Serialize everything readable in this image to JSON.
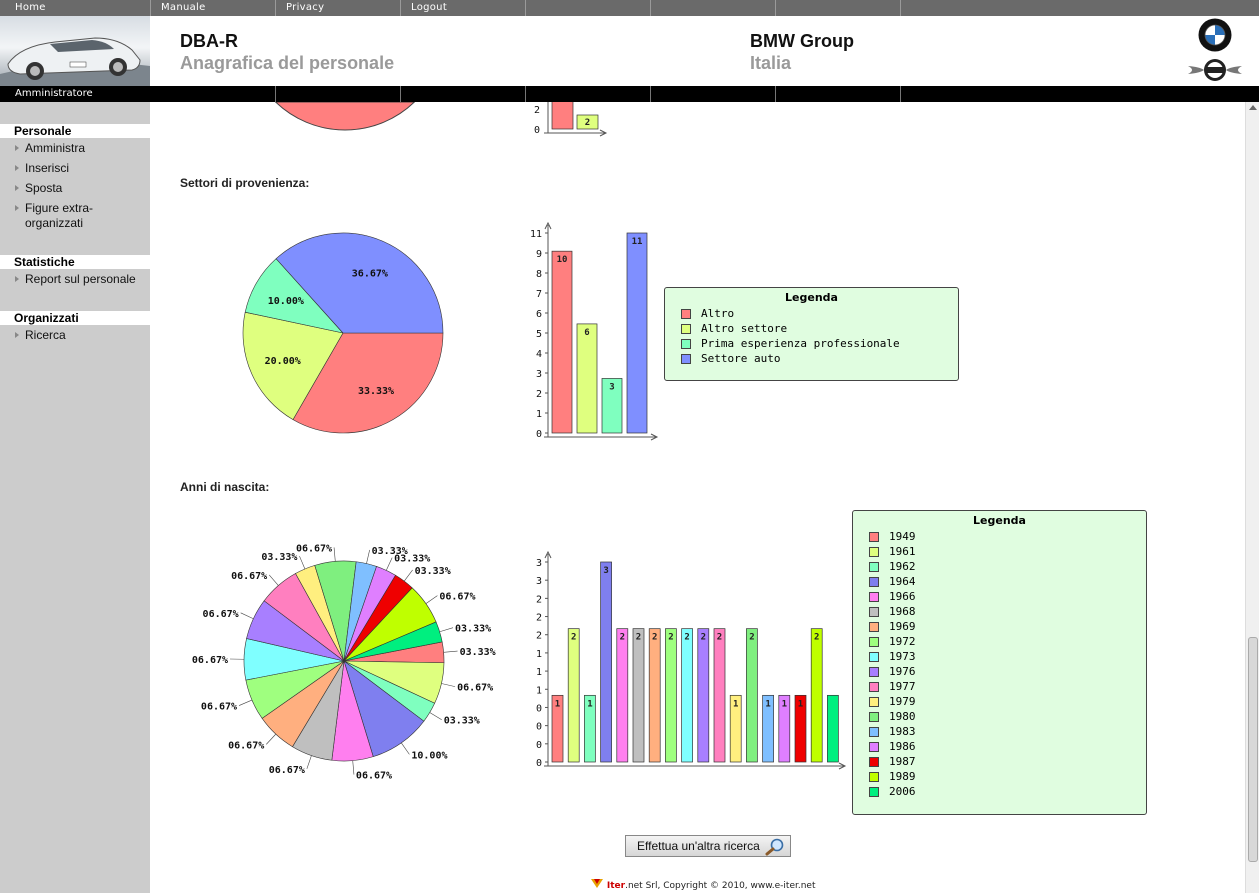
{
  "nav": {
    "items": [
      "Home",
      "Manuale",
      "Privacy",
      "Logout"
    ]
  },
  "header": {
    "app_title": "DBA-R",
    "app_subtitle": "Anagrafica del personale",
    "brand_title": "BMW Group",
    "brand_subtitle": "Italia",
    "role": "Amministratore",
    "logos": [
      "bmw-logo",
      "mini-logo"
    ]
  },
  "sidebar": {
    "sections": [
      {
        "title": "Personale",
        "items": [
          "Amministra",
          "Inserisci",
          "Sposta",
          "Figure extra-\norganizzati"
        ]
      },
      {
        "title": "Statistiche",
        "items": [
          "Report sul personale"
        ]
      },
      {
        "title": "Organizzati",
        "items": [
          "Ricerca"
        ]
      }
    ]
  },
  "colors": {
    "nav_bg": "#6a6a6a",
    "sidebar_bg": "#cccccc",
    "legend_bg": "#e0fde0"
  },
  "sections": {
    "settori_title": "Settori di provenienza:",
    "anni_title": "Anni di nascita:"
  },
  "chart_data": [
    {
      "type": "bar",
      "note": "partially scrolled-out chart at top",
      "visible_y_ticks": [
        "2",
        "0"
      ],
      "visible_bars": [
        {
          "value_label": "",
          "color": "#ff7f7f"
        },
        {
          "value_label": "2",
          "color": "#dfff7f"
        }
      ]
    },
    {
      "type": "pie",
      "title": "Settori di provenienza:",
      "categories": [
        "Altro",
        "Altro settore",
        "Prima esperienza professionale",
        "Settore auto"
      ],
      "percent_labels": [
        "33.33%",
        "20.00%",
        "10.00%",
        "36.67%"
      ],
      "values": [
        10,
        6,
        3,
        11
      ],
      "colors": [
        "#ff7f7f",
        "#dfff7f",
        "#7fffbf",
        "#7f8fff"
      ]
    },
    {
      "type": "bar",
      "title": "Settori di provenienza:",
      "categories": [
        "Altro",
        "Altro settore",
        "Prima esperienza professionale",
        "Settore auto"
      ],
      "values": [
        10,
        6,
        3,
        11
      ],
      "value_labels": [
        "10",
        "6",
        "3",
        "11"
      ],
      "y_ticks": [
        "0",
        "1",
        "2",
        "3",
        "4",
        "5",
        "6",
        "7",
        "8",
        "9",
        "11"
      ],
      "ylim": [
        0,
        11
      ],
      "colors": [
        "#ff7f7f",
        "#dfff7f",
        "#7fffbf",
        "#7f8fff"
      ],
      "legend": {
        "title": "Legenda",
        "entries": [
          "Altro",
          "Altro settore",
          "Prima esperienza professionale",
          "Settore auto"
        ],
        "placement": "right"
      }
    },
    {
      "type": "pie",
      "title": "Anni di nascita:",
      "categories": [
        "1949",
        "1961",
        "1962",
        "1964",
        "1966",
        "1968",
        "1969",
        "1972",
        "1973",
        "1976",
        "1977",
        "1979",
        "1980",
        "1983",
        "1986",
        "1987",
        "1989",
        "2006"
      ],
      "values": [
        1,
        2,
        1,
        3,
        2,
        2,
        2,
        2,
        2,
        2,
        2,
        1,
        2,
        1,
        1,
        1,
        2,
        1
      ],
      "percent_labels": [
        "03.33%",
        "06.67%",
        "03.33%",
        "10.00%",
        "06.67%",
        "06.67%",
        "06.67%",
        "06.67%",
        "06.67%",
        "06.67%",
        "06.67%",
        "03.33%",
        "06.67%",
        "03.33%",
        "03.33%",
        "03.33%",
        "06.67%",
        "03.33%"
      ],
      "colors": [
        "#ff7f7f",
        "#dfff7f",
        "#7fffbf",
        "#7f7fef",
        "#ff7fef",
        "#bfbfbf",
        "#ffaf7f",
        "#9fff7f",
        "#7fffff",
        "#a87fff",
        "#ff7fbf",
        "#ffef7f",
        "#7fef7f",
        "#7fbfff",
        "#df7fff",
        "#ef0000",
        "#bfff00",
        "#00ef7f"
      ]
    },
    {
      "type": "bar",
      "title": "Anni di nascita:",
      "categories": [
        "1949",
        "1961",
        "1962",
        "1964",
        "1966",
        "1968",
        "1969",
        "1972",
        "1973",
        "1976",
        "1977",
        "1979",
        "1980",
        "1983",
        "1986",
        "1987",
        "1989",
        "2006"
      ],
      "values": [
        1,
        2,
        1,
        3,
        2,
        2,
        2,
        2,
        2,
        2,
        2,
        1,
        2,
        1,
        1,
        1,
        2,
        1
      ],
      "value_labels": [
        "1",
        "2",
        "1",
        "3",
        "2",
        "2",
        "2",
        "2",
        "2",
        "2",
        "2",
        "1",
        "2",
        "1",
        "1",
        "1",
        "2",
        ""
      ],
      "y_ticks": [
        "0",
        "0",
        "0",
        "0",
        "1",
        "1",
        "1",
        "2",
        "2",
        "2",
        "3",
        "3"
      ],
      "ylim": [
        0,
        3.3
      ],
      "colors": [
        "#ff7f7f",
        "#dfff7f",
        "#7fffbf",
        "#7f7fef",
        "#ff7fef",
        "#bfbfbf",
        "#ffaf7f",
        "#9fff7f",
        "#7fffff",
        "#a87fff",
        "#ff7fbf",
        "#ffef7f",
        "#7fef7f",
        "#7fbfff",
        "#df7fff",
        "#ef0000",
        "#bfff00",
        "#00ef7f"
      ],
      "legend": {
        "title": "Legenda",
        "entries": [
          "1949",
          "1961",
          "1962",
          "1964",
          "1966",
          "1968",
          "1969",
          "1972",
          "1973",
          "1976",
          "1977",
          "1979",
          "1980",
          "1983",
          "1986",
          "1987",
          "1989",
          "2006"
        ],
        "placement": "right"
      }
    }
  ],
  "search_button": {
    "label": "Effettua un'altra ricerca",
    "icon": "magnifier-icon"
  },
  "footer": {
    "brand": "Iter",
    "text": ".net Srl, Copyright © 2010, www.e-iter.net"
  }
}
